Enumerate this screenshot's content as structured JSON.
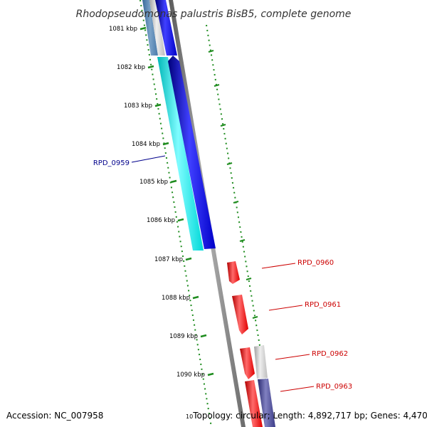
{
  "title": "Rhodopseudomonas palustris BisB5, complete genome",
  "accession": "Accession: NC_007958",
  "topology_line": "Topology: circular; Length: 4,892,717 bp; Genes: 4,470",
  "clipped_tick": "10",
  "colors": {
    "backbone": "#8c8c8c",
    "ruler": "#1e8c1e",
    "blue_gene": "#0000ff",
    "cyan_gene": "#00e5e5",
    "red_gene": "#ee0000",
    "grey_gene": "#c8c8c8",
    "navy_gene": "#4d4d99",
    "blue_label": "#00008b",
    "red_label": "#cc0000"
  },
  "ruler_ticks": [
    {
      "label": "1081 kbp"
    },
    {
      "label": "1082 kbp"
    },
    {
      "label": "1083 kbp"
    },
    {
      "label": "1084 kbp"
    },
    {
      "label": "1085 kbp"
    },
    {
      "label": "1086 kbp"
    },
    {
      "label": "1087 kbp"
    },
    {
      "label": "1088 kbp"
    },
    {
      "label": "1089 kbp"
    },
    {
      "label": "1090 kbp"
    }
  ],
  "gene_labels": [
    {
      "name": "RPD_0959",
      "color": "#00008b"
    },
    {
      "name": "RPD_0960",
      "color": "#cc0000"
    },
    {
      "name": "RPD_0961",
      "color": "#cc0000"
    },
    {
      "name": "RPD_0962",
      "color": "#cc0000"
    },
    {
      "name": "RPD_0963",
      "color": "#cc0000"
    }
  ]
}
